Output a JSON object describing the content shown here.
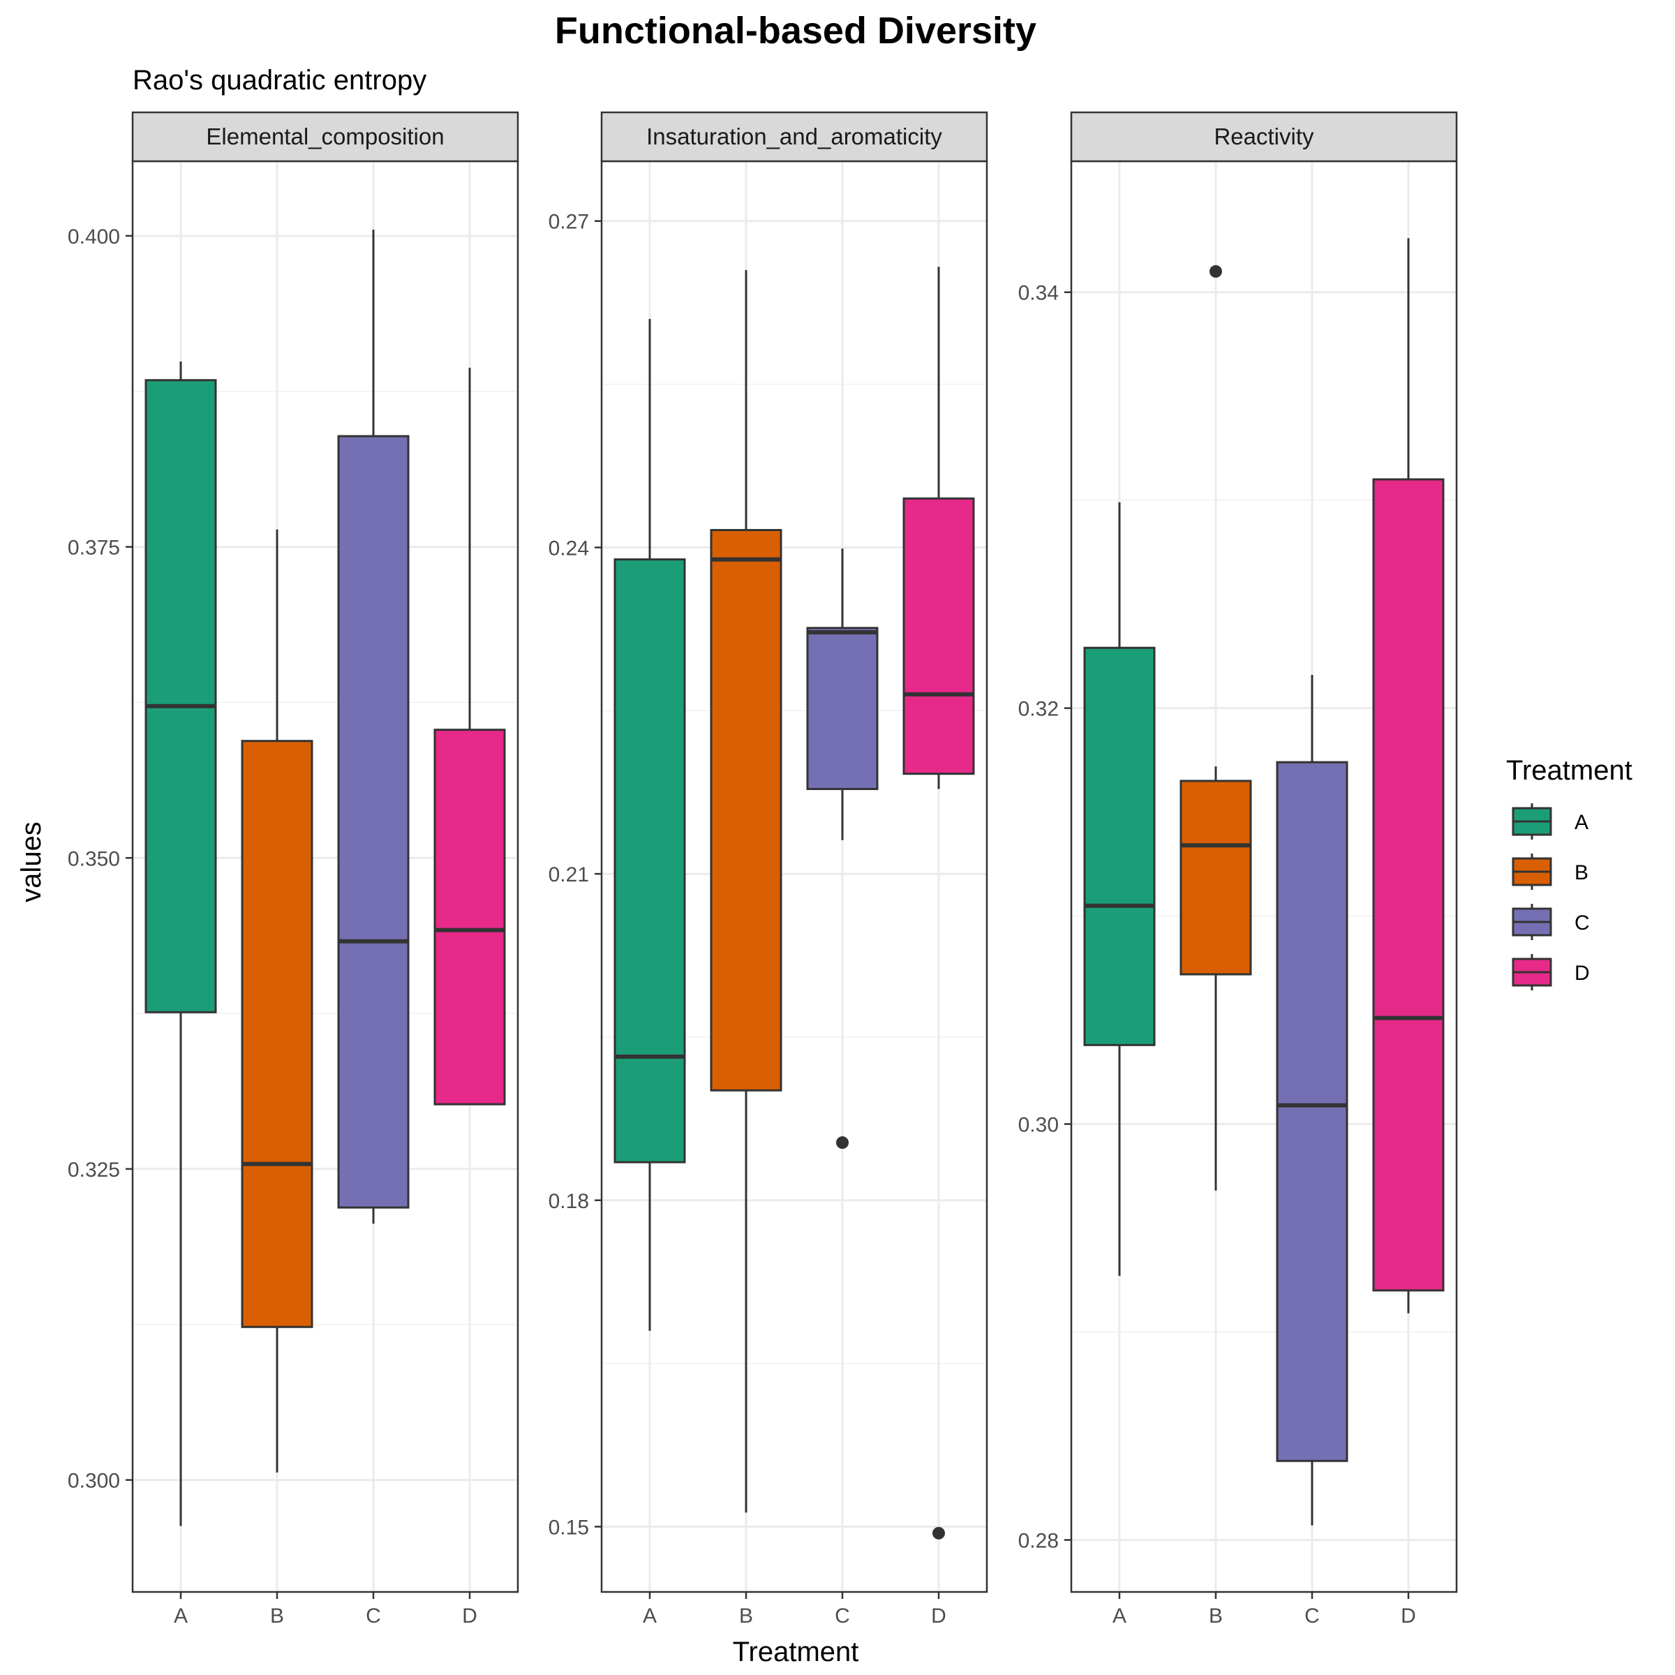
{
  "chart_data": {
    "type": "box",
    "title": "Functional-based Diversity",
    "subtitle": "Rao's quadratic entropy",
    "xlabel": "Treatment",
    "ylabel": "values",
    "categories": [
      "A",
      "B",
      "C",
      "D"
    ],
    "colors": [
      "#1b9e77",
      "#d95f02",
      "#7570b3",
      "#e7298a"
    ],
    "grid": true,
    "legend": {
      "title": "Treatment",
      "position": "right",
      "entries": [
        "A",
        "B",
        "C",
        "D"
      ]
    },
    "panels": [
      {
        "name": "Elemental_composition",
        "ylim": [
          0.291,
          0.406
        ],
        "yticks": [
          0.3,
          0.325,
          0.35,
          0.375,
          0.4
        ],
        "tick_labels": [
          "0.300",
          "0.325",
          "0.350",
          "0.375",
          "0.400"
        ],
        "boxes": [
          {
            "category": "A",
            "min": 0.2963,
            "q1": 0.3376,
            "median": 0.3622,
            "q3": 0.3884,
            "max": 0.3899,
            "outliers": []
          },
          {
            "category": "B",
            "min": 0.3006,
            "q1": 0.3123,
            "median": 0.3254,
            "q3": 0.3594,
            "max": 0.3764,
            "outliers": []
          },
          {
            "category": "C",
            "min": 0.3206,
            "q1": 0.3219,
            "median": 0.3433,
            "q3": 0.3839,
            "max": 0.4005,
            "outliers": []
          },
          {
            "category": "D",
            "min": 0.3302,
            "q1": 0.3302,
            "median": 0.3442,
            "q3": 0.3603,
            "max": 0.3894,
            "outliers": []
          }
        ]
      },
      {
        "name": "Insaturation_and_aromaticity",
        "ylim": [
          0.144,
          0.2755
        ],
        "yticks": [
          0.15,
          0.18,
          0.21,
          0.24,
          0.27
        ],
        "tick_labels": [
          "0.15",
          "0.18",
          "0.21",
          "0.24",
          "0.27"
        ],
        "boxes": [
          {
            "category": "A",
            "min": 0.168,
            "q1": 0.1835,
            "median": 0.1932,
            "q3": 0.2389,
            "max": 0.261,
            "outliers": []
          },
          {
            "category": "B",
            "min": 0.1513,
            "q1": 0.1901,
            "median": 0.2389,
            "q3": 0.2416,
            "max": 0.2655,
            "outliers": []
          },
          {
            "category": "C",
            "min": 0.2131,
            "q1": 0.2178,
            "median": 0.2322,
            "q3": 0.2326,
            "max": 0.2399,
            "outliers": [
              0.1853
            ]
          },
          {
            "category": "D",
            "min": 0.2178,
            "q1": 0.2192,
            "median": 0.2265,
            "q3": 0.2445,
            "max": 0.2658,
            "outliers": [
              0.1494
            ]
          }
        ]
      },
      {
        "name": "Reactivity",
        "ylim": [
          0.2775,
          0.3463
        ],
        "yticks": [
          0.28,
          0.3,
          0.32,
          0.34
        ],
        "tick_labels": [
          "0.28",
          "0.30",
          "0.32",
          "0.34"
        ],
        "boxes": [
          {
            "category": "A",
            "min": 0.2927,
            "q1": 0.3038,
            "median": 0.3105,
            "q3": 0.3229,
            "max": 0.3299,
            "outliers": []
          },
          {
            "category": "B",
            "min": 0.2968,
            "q1": 0.3072,
            "median": 0.3134,
            "q3": 0.3165,
            "max": 0.3172,
            "outliers": [
              0.341
            ]
          },
          {
            "category": "C",
            "min": 0.2807,
            "q1": 0.2838,
            "median": 0.3009,
            "q3": 0.3174,
            "max": 0.3216,
            "outliers": []
          },
          {
            "category": "D",
            "min": 0.2909,
            "q1": 0.292,
            "median": 0.3051,
            "q3": 0.331,
            "max": 0.3426,
            "outliers": []
          }
        ]
      }
    ]
  }
}
